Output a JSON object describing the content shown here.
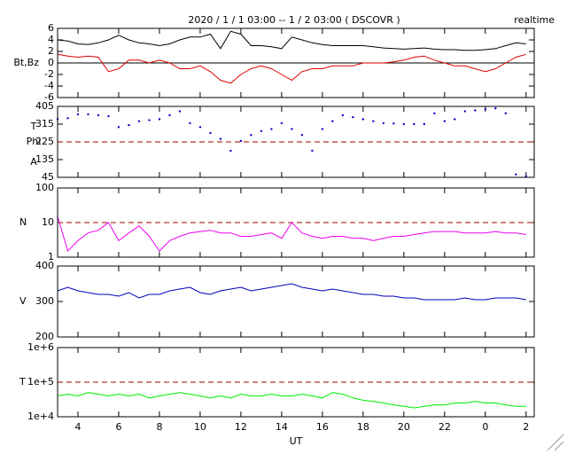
{
  "chart_data": [
    {
      "type": "line",
      "title": "2020 / 1 / 1  03:00 -- 1 / 2  03:00 ( DSCOVR )",
      "annotation": "realtime",
      "ylabel": "Bt,Bz",
      "x": [
        3,
        3.5,
        4,
        4.5,
        5,
        5.5,
        6,
        6.5,
        7,
        7.5,
        8,
        8.5,
        9,
        9.5,
        10,
        10.5,
        11,
        11.5,
        12,
        12.5,
        13,
        13.5,
        14,
        14.5,
        15,
        15.5,
        16,
        16.5,
        17,
        17.5,
        18,
        18.5,
        19,
        19.5,
        20,
        20.5,
        21,
        21.5,
        22,
        22.5,
        23,
        23.5,
        24,
        24.5,
        25,
        25.5,
        26
      ],
      "series": [
        {
          "color": "#000000",
          "values": [
            4,
            3.8,
            3.3,
            3.2,
            3.5,
            4,
            4.8,
            4,
            3.5,
            3.3,
            3,
            3.3,
            4,
            4.5,
            4.5,
            5,
            2.5,
            5.5,
            5,
            3,
            3,
            2.8,
            2.5,
            4.5,
            4,
            3.5,
            3.2,
            3,
            3,
            3,
            3,
            2.8,
            2.6,
            2.5,
            2.4,
            2.5,
            2.6,
            2.4,
            2.3,
            2.3,
            2.2,
            2.2,
            2.3,
            2.5,
            3,
            3.5,
            3.3
          ]
        },
        {
          "color": "#dd0000",
          "values": [
            1.5,
            1.2,
            1,
            1.2,
            1,
            -1.5,
            -1,
            0.5,
            0.5,
            0,
            0.5,
            0,
            -1,
            -1,
            -0.5,
            -1.5,
            -3,
            -3.5,
            -2,
            -1,
            -0.5,
            -1,
            -2,
            -3,
            -1.5,
            -1,
            -1,
            -0.5,
            -0.5,
            -0.5,
            0,
            0,
            0,
            0.2,
            0.5,
            1,
            1.2,
            0.5,
            0,
            -0.5,
            -0.5,
            -1,
            -1.5,
            -1,
            0,
            1,
            1.5
          ]
        }
      ],
      "xlim": [
        3,
        26.4
      ],
      "ylim": [
        -6,
        6
      ],
      "yticks": [
        -6,
        -4,
        -2,
        0,
        2,
        4,
        6
      ]
    },
    {
      "type": "scatter",
      "ylabel": [
        "T",
        "Phi",
        "A"
      ],
      "color": "#0000cc",
      "reference_line": 225,
      "reference_color": "#a00000",
      "x": [
        3,
        3.5,
        4,
        4.5,
        5,
        5.5,
        6,
        6.5,
        7,
        7.5,
        8,
        8.5,
        9,
        9.5,
        10,
        10.5,
        11,
        11.5,
        12,
        12.5,
        13,
        13.5,
        14,
        14.5,
        15,
        15.5,
        16,
        16.5,
        17,
        17.5,
        18,
        18.5,
        19,
        19.5,
        20,
        20.5,
        21,
        21.5,
        22,
        22.5,
        23,
        23.5,
        24,
        24.5,
        25,
        25.5,
        26
      ],
      "values": [
        340,
        345,
        365,
        365,
        360,
        355,
        300,
        310,
        330,
        335,
        340,
        360,
        380,
        320,
        300,
        270,
        240,
        180,
        230,
        260,
        280,
        290,
        320,
        290,
        260,
        180,
        290,
        330,
        360,
        350,
        340,
        330,
        320,
        318,
        315,
        315,
        315,
        370,
        330,
        340,
        380,
        385,
        390,
        395,
        370,
        60,
        50
      ],
      "xlim": [
        3,
        26.4
      ],
      "ylim": [
        45,
        405
      ],
      "yticks": [
        45,
        135,
        225,
        315,
        405
      ]
    },
    {
      "type": "line",
      "ylabel": "N",
      "color": "#ee00ee",
      "log": true,
      "reference_line": 10,
      "reference_color": "#a00000",
      "x": [
        3,
        3.5,
        4,
        4.5,
        5,
        5.5,
        6,
        6.5,
        7,
        7.5,
        8,
        8.5,
        9,
        9.5,
        10,
        10.5,
        11,
        11.5,
        12,
        12.5,
        13,
        13.5,
        14,
        14.5,
        15,
        15.5,
        16,
        16.5,
        17,
        17.5,
        18,
        18.5,
        19,
        19.5,
        20,
        20.5,
        21,
        21.5,
        22,
        22.5,
        23,
        23.5,
        24,
        24.5,
        25,
        25.5,
        26
      ],
      "values": [
        15,
        1.5,
        3,
        5,
        6,
        10,
        3,
        5,
        8,
        4,
        1.5,
        3,
        4,
        5,
        5.5,
        6,
        5,
        5,
        4,
        4,
        4.5,
        5,
        3.5,
        10,
        5,
        4,
        3.5,
        4,
        4,
        3.5,
        3.5,
        3,
        3.5,
        4,
        4,
        4.5,
        5,
        5.5,
        5.5,
        5.5,
        5,
        5,
        5,
        5.5,
        5,
        5,
        4.5
      ],
      "xlim": [
        3,
        26.4
      ],
      "ylim": [
        1,
        100
      ],
      "yticks": [
        1,
        10,
        100
      ]
    },
    {
      "type": "line",
      "ylabel": "V",
      "color": "#0000bb",
      "x": [
        3,
        3.5,
        4,
        4.5,
        5,
        5.5,
        6,
        6.5,
        7,
        7.5,
        8,
        8.5,
        9,
        9.5,
        10,
        10.5,
        11,
        11.5,
        12,
        12.5,
        13,
        13.5,
        14,
        14.5,
        15,
        15.5,
        16,
        16.5,
        17,
        17.5,
        18,
        18.5,
        19,
        19.5,
        20,
        20.5,
        21,
        21.5,
        22,
        22.5,
        23,
        23.5,
        24,
        24.5,
        25,
        25.5,
        26
      ],
      "values": [
        330,
        340,
        330,
        325,
        320,
        320,
        315,
        325,
        310,
        320,
        320,
        330,
        335,
        340,
        325,
        320,
        330,
        335,
        340,
        330,
        335,
        340,
        345,
        350,
        340,
        335,
        330,
        335,
        330,
        325,
        320,
        320,
        315,
        315,
        310,
        310,
        305,
        305,
        305,
        305,
        310,
        305,
        305,
        310,
        310,
        310,
        305
      ],
      "xlim": [
        3,
        26.4
      ],
      "ylim": [
        200,
        400
      ],
      "yticks": [
        200,
        300,
        400
      ]
    },
    {
      "type": "line",
      "ylabel": "T",
      "xlabel": "UT",
      "color": "#00ee00",
      "log": true,
      "reference_line": 100000,
      "reference_color": "#a00000",
      "x": [
        3,
        3.5,
        4,
        4.5,
        5,
        5.5,
        6,
        6.5,
        7,
        7.5,
        8,
        8.5,
        9,
        9.5,
        10,
        10.5,
        11,
        11.5,
        12,
        12.5,
        13,
        13.5,
        14,
        14.5,
        15,
        15.5,
        16,
        16.5,
        17,
        17.5,
        18,
        18.5,
        19,
        19.5,
        20,
        20.5,
        21,
        21.5,
        22,
        22.5,
        23,
        23.5,
        24,
        24.5,
        25,
        25.5,
        26
      ],
      "values": [
        40000,
        45000,
        40000,
        50000,
        45000,
        40000,
        45000,
        40000,
        45000,
        35000,
        40000,
        45000,
        50000,
        45000,
        40000,
        35000,
        40000,
        35000,
        45000,
        40000,
        40000,
        45000,
        40000,
        40000,
        45000,
        40000,
        35000,
        50000,
        45000,
        35000,
        30000,
        28000,
        25000,
        22000,
        20000,
        18000,
        20000,
        22000,
        22000,
        25000,
        25000,
        28000,
        25000,
        25000,
        22000,
        20000,
        20000
      ],
      "xlim": [
        3,
        26.4
      ],
      "ylim": [
        10000,
        1000000
      ],
      "yticks": [
        {
          "value": 10000,
          "label": "1e+4"
        },
        {
          "value": 100000,
          "label": "1e+5"
        },
        {
          "value": 1000000,
          "label": "1e+6"
        }
      ],
      "xticks": [
        4,
        6,
        8,
        10,
        12,
        14,
        16,
        18,
        20,
        22,
        {
          "value": 24,
          "label": "0"
        },
        {
          "value": 26,
          "label": "2"
        }
      ]
    }
  ]
}
